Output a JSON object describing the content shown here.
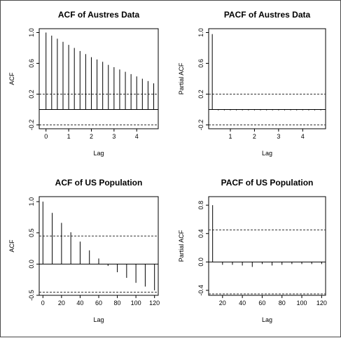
{
  "charts": [
    {
      "title": "ACF of Austres Data",
      "xlabel": "Lag",
      "ylabel": "ACF",
      "xlim": [
        -0.3,
        4.95
      ],
      "ylim": [
        -0.25,
        1.05
      ],
      "xticks": [
        0,
        1,
        2,
        3,
        4
      ],
      "yticks": [
        -0.2,
        0.2,
        0.6,
        1.0
      ],
      "ytick_labels": [
        "-0.2",
        "0.2",
        "0.6",
        "1.0"
      ],
      "xtick_labels": [
        "0",
        "1",
        "2",
        "3",
        "4"
      ],
      "ci": 0.2,
      "zero_line": true
    },
    {
      "title": "PACF of Austres Data",
      "xlabel": "Lag",
      "ylabel": "Partial ACF",
      "xlim": [
        0.1,
        4.95
      ],
      "ylim": [
        -0.25,
        1.05
      ],
      "xticks": [
        1,
        2,
        3,
        4
      ],
      "yticks": [
        -0.2,
        0.2,
        0.6,
        1.0
      ],
      "ytick_labels": [
        "-0.2",
        "0.2",
        "0.6",
        "1.0"
      ],
      "xtick_labels": [
        "1",
        "2",
        "3",
        "4"
      ],
      "ci": 0.2,
      "zero_line": true
    },
    {
      "title": "ACF of US Population",
      "xlabel": "Lag",
      "ylabel": "ACF",
      "xlim": [
        -4,
        124
      ],
      "ylim": [
        -0.5,
        1.08
      ],
      "xticks": [
        0,
        20,
        40,
        60,
        80,
        100,
        120
      ],
      "yticks": [
        -0.5,
        0.0,
        0.5,
        1.0
      ],
      "ytick_labels": [
        "-0.5",
        "0.0",
        "0.5",
        "1.0"
      ],
      "xtick_labels": [
        "0",
        "20",
        "40",
        "60",
        "80",
        "100",
        "120"
      ],
      "ci": 0.45,
      "zero_line": true
    },
    {
      "title": "PACF of US Population",
      "xlabel": "Lag",
      "ylabel": "Partial ACF",
      "xlim": [
        6,
        124
      ],
      "ylim": [
        -0.47,
        0.92
      ],
      "xticks": [
        20,
        40,
        60,
        80,
        100,
        120
      ],
      "yticks": [
        -0.4,
        0.0,
        0.4,
        0.8
      ],
      "ytick_labels": [
        "-0.4",
        "0.0",
        "0.4",
        "0.8"
      ],
      "xtick_labels": [
        "20",
        "40",
        "60",
        "80",
        "100",
        "120"
      ],
      "ci": 0.45,
      "zero_line": true
    }
  ],
  "chart_data": [
    {
      "type": "bar",
      "title": "ACF of Austres Data",
      "xlabel": "Lag",
      "ylabel": "ACF",
      "x": [
        0,
        0.25,
        0.5,
        0.75,
        1.0,
        1.25,
        1.5,
        1.75,
        2.0,
        2.25,
        2.5,
        2.75,
        3.0,
        3.25,
        3.5,
        3.75,
        4.0,
        4.25,
        4.5,
        4.75
      ],
      "values": [
        1.0,
        0.96,
        0.92,
        0.88,
        0.84,
        0.8,
        0.76,
        0.72,
        0.68,
        0.65,
        0.62,
        0.58,
        0.55,
        0.52,
        0.49,
        0.46,
        0.43,
        0.4,
        0.37,
        0.34
      ],
      "confidence_band": 0.2,
      "ylim": [
        -0.25,
        1.05
      ]
    },
    {
      "type": "bar",
      "title": "PACF of Austres Data",
      "xlabel": "Lag",
      "ylabel": "Partial ACF",
      "x": [
        0.25,
        0.5,
        0.75,
        1.0,
        1.25,
        1.5,
        1.75,
        2.0,
        2.25,
        2.5,
        2.75,
        3.0,
        3.25,
        3.5,
        3.75,
        4.0,
        4.25,
        4.5,
        4.75
      ],
      "values": [
        0.98,
        -0.01,
        -0.01,
        -0.01,
        -0.01,
        -0.01,
        -0.01,
        -0.01,
        -0.01,
        -0.01,
        -0.01,
        -0.01,
        -0.01,
        -0.01,
        -0.01,
        -0.01,
        -0.01,
        -0.01,
        -0.01
      ],
      "confidence_band": 0.2,
      "ylim": [
        -0.25,
        1.05
      ]
    },
    {
      "type": "bar",
      "title": "ACF of US Population",
      "xlabel": "Lag",
      "ylabel": "ACF",
      "x": [
        0,
        10,
        20,
        30,
        40,
        50,
        60,
        70,
        80,
        90,
        100,
        110,
        120
      ],
      "values": [
        1.0,
        0.82,
        0.66,
        0.51,
        0.36,
        0.22,
        0.09,
        -0.03,
        -0.13,
        -0.22,
        -0.3,
        -0.36,
        -0.42
      ],
      "confidence_band": 0.45,
      "ylim": [
        -0.5,
        1.08
      ]
    },
    {
      "type": "bar",
      "title": "PACF of US Population",
      "xlabel": "Lag",
      "ylabel": "Partial ACF",
      "x": [
        10,
        20,
        30,
        40,
        50,
        60,
        70,
        80,
        90,
        100,
        110,
        120
      ],
      "values": [
        0.8,
        -0.04,
        -0.04,
        -0.05,
        -0.07,
        -0.03,
        -0.05,
        -0.04,
        -0.03,
        -0.03,
        -0.03,
        -0.03
      ],
      "confidence_band": 0.45,
      "ylim": [
        -0.47,
        0.92
      ]
    }
  ]
}
